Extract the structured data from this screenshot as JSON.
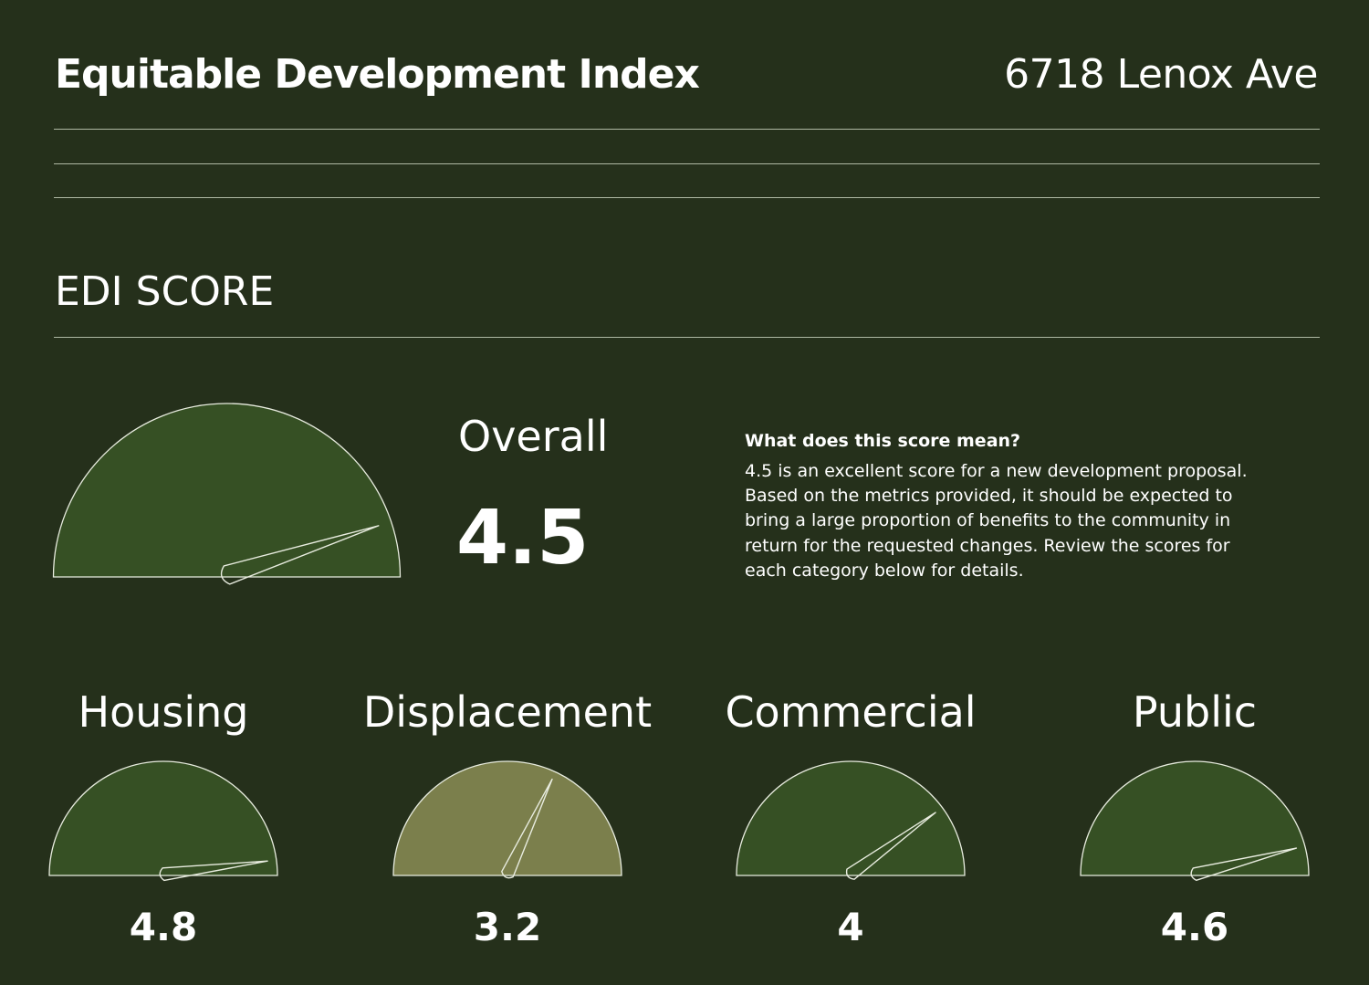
{
  "header": {
    "title": "Equitable Development Index",
    "address": "6718 Lenox Ave"
  },
  "section": {
    "title": "EDI SCORE"
  },
  "overall": {
    "label": "Overall",
    "value_text": "4.5",
    "score": 4.5,
    "max": 5,
    "fill": "#365024"
  },
  "explanation": {
    "heading": "What does this score mean?",
    "body": "4.5 is an excellent score for a new development proposal. Based on the metrics provided, it should be expected to bring a large proportion of benefits to the community in return for the requested changes. Review the scores for each category below for details."
  },
  "categories": [
    {
      "label": "Housing",
      "value_text": "4.8",
      "score": 4.8,
      "fill": "#365024"
    },
    {
      "label": "Displacement",
      "value_text": "3.2",
      "score": 3.2,
      "fill": "#7b7f4c"
    },
    {
      "label": "Commercial",
      "value_text": "4",
      "score": 4.0,
      "fill": "#365024"
    },
    {
      "label": "Public",
      "value_text": "4.6",
      "score": 4.6,
      "fill": "#365024"
    }
  ],
  "colors": {
    "background": "#25301b",
    "gauge_stroke": "#e8ecdf",
    "rule": "#aeb8a3",
    "text": "#ffffff"
  }
}
